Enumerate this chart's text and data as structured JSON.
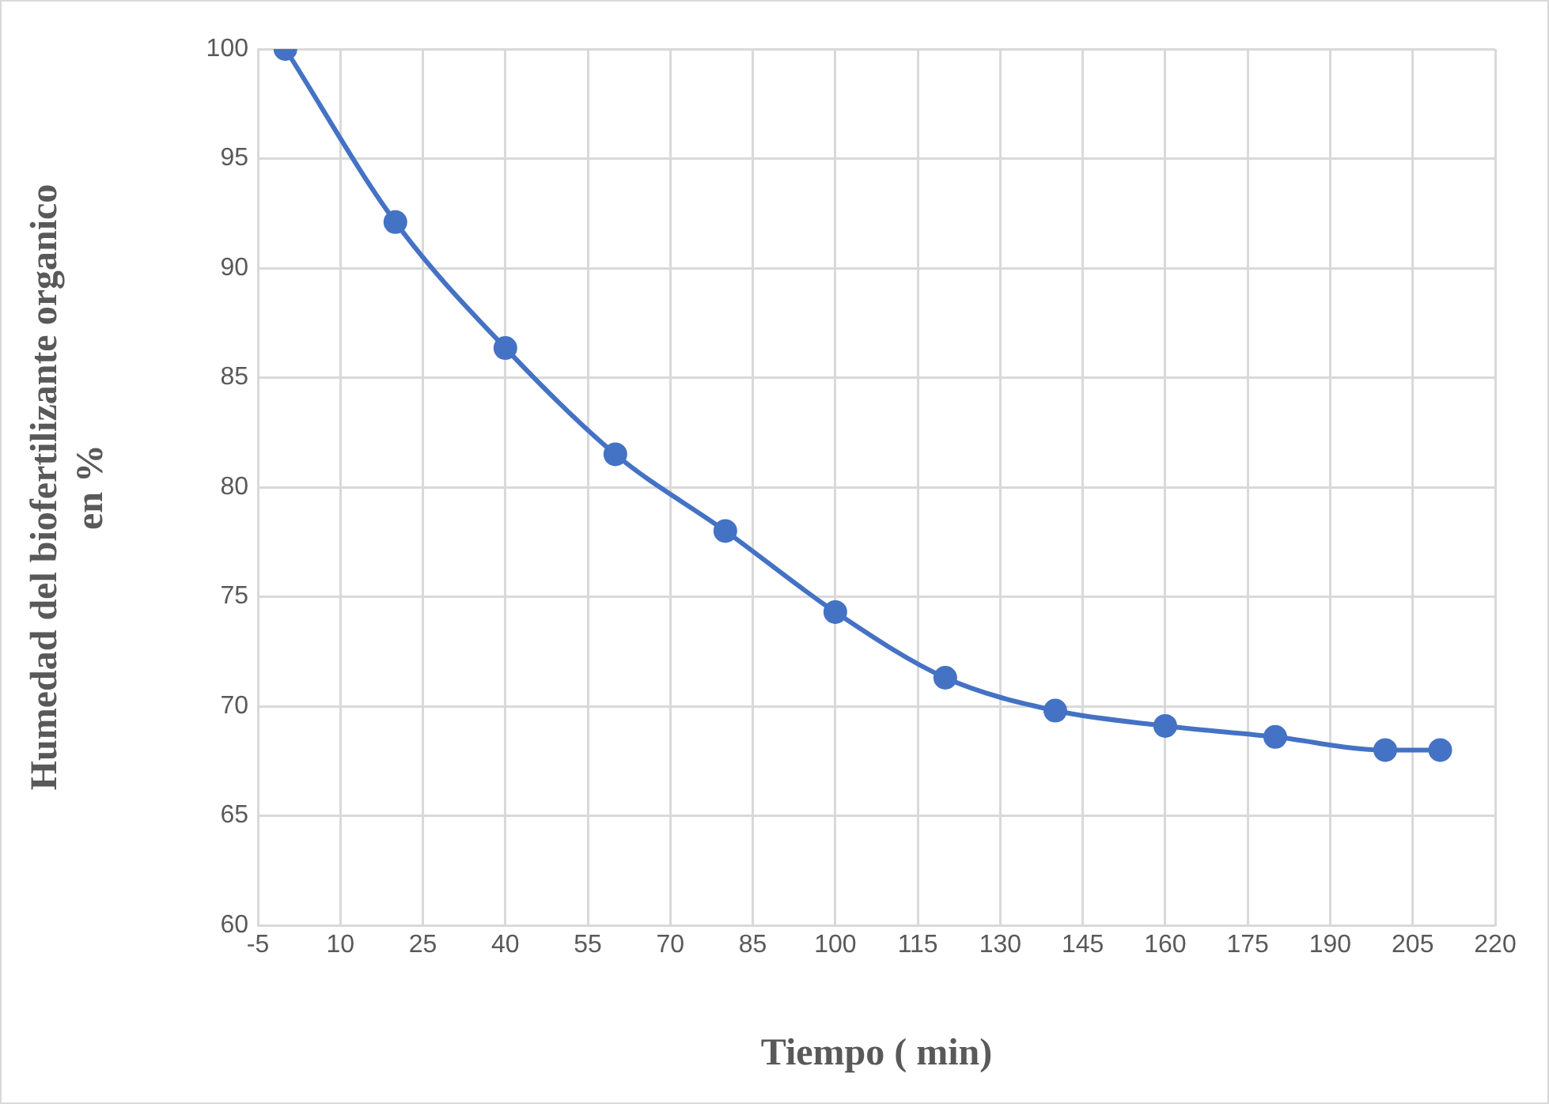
{
  "chart_data": {
    "type": "line",
    "xlabel": "Tiempo ( min)",
    "ylabel": "Humedad del biofertilizante organico\nen %",
    "x": [
      0,
      20,
      40,
      60,
      80,
      100,
      120,
      140,
      160,
      180,
      200,
      210
    ],
    "series": [
      {
        "color": "#4472c4",
        "values": [
          100,
          92.1,
          86.35,
          81.5,
          78.0,
          74.3,
          71.3,
          69.8,
          69.1,
          68.6,
          68.0,
          68.0
        ]
      }
    ],
    "xlim": [
      -5,
      220
    ],
    "xticks": [
      -5,
      10,
      25,
      40,
      55,
      70,
      85,
      100,
      115,
      130,
      145,
      160,
      175,
      190,
      205,
      220
    ],
    "ylim": [
      60,
      100
    ],
    "yticks": [
      60,
      65,
      70,
      75,
      80,
      85,
      90,
      95,
      100
    ],
    "grid": true,
    "legend": false,
    "marker": "circle",
    "line_style": "solid"
  }
}
